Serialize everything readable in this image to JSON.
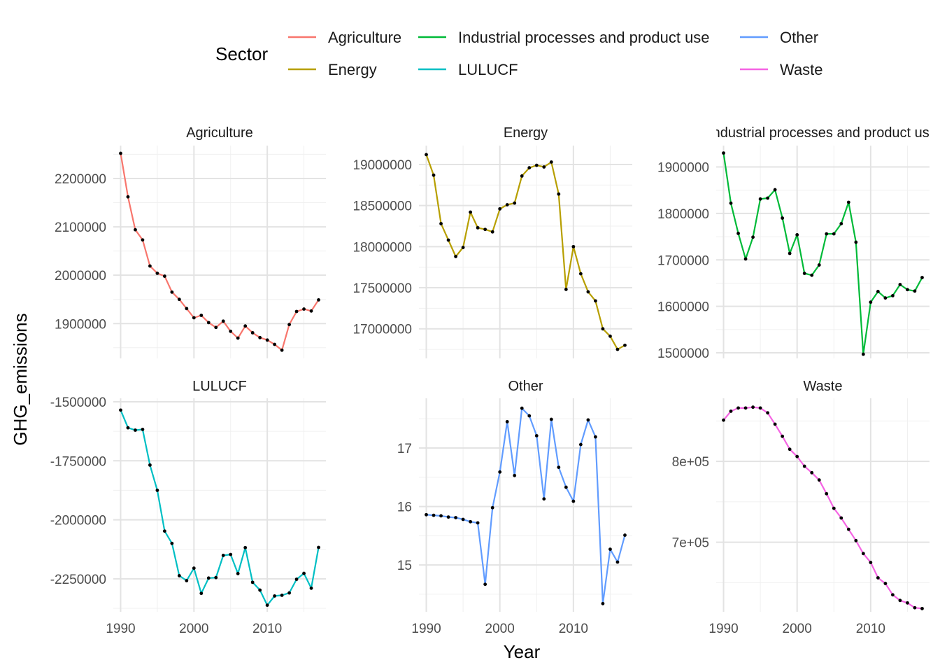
{
  "chart_data": {
    "type": "line",
    "facet_by": "Sector",
    "xlabel": "Year",
    "ylabel": "GHG_emissions",
    "legend": {
      "title": "Sector",
      "position": "top",
      "entries": [
        {
          "label": "Agriculture",
          "color": "#F8766D"
        },
        {
          "label": "Energy",
          "color": "#B79F00"
        },
        {
          "label": "Industrial processes and product use",
          "color": "#00BA38"
        },
        {
          "label": "LULUCF",
          "color": "#00BFC4"
        },
        {
          "label": "Other",
          "color": "#619CFF"
        },
        {
          "label": "Waste",
          "color": "#F564E3"
        }
      ]
    },
    "grid": true,
    "x_ticks": [
      1990,
      2000,
      2010
    ],
    "years": [
      1990,
      1991,
      1992,
      1993,
      1994,
      1995,
      1996,
      1997,
      1998,
      1999,
      2000,
      2001,
      2002,
      2003,
      2004,
      2005,
      2006,
      2007,
      2008,
      2009,
      2010,
      2011,
      2012,
      2013,
      2014,
      2015,
      2016,
      2017
    ],
    "xlim": [
      1989,
      2018
    ],
    "panels": [
      {
        "name": "Agriculture",
        "strip_label": "Agriculture",
        "color": "#F8766D",
        "ylim": [
          1828000,
          2268000
        ],
        "y_ticks": [
          1900000,
          2000000,
          2100000,
          2200000
        ],
        "y_tick_labels": [
          "1900000",
          "2000000",
          "2100000",
          "2200000"
        ],
        "y_minor": [
          1850000,
          1950000,
          2050000,
          2150000,
          2250000
        ],
        "values": [
          2252000,
          2162000,
          2094000,
          2073000,
          2019000,
          2004000,
          1998000,
          1965000,
          1950000,
          1931000,
          1912000,
          1917000,
          1902000,
          1892000,
          1905000,
          1884000,
          1870000,
          1895000,
          1881000,
          1871000,
          1866000,
          1857000,
          1845000,
          1898000,
          1925000,
          1930000,
          1926000,
          1949000
        ]
      },
      {
        "name": "Energy",
        "strip_label": "Energy",
        "color": "#B79F00",
        "ylim": [
          16640000,
          19230000
        ],
        "y_ticks": [
          17000000,
          17500000,
          18000000,
          18500000,
          19000000
        ],
        "y_tick_labels": [
          "17000000",
          "17500000",
          "18000000",
          "18500000",
          "19000000"
        ],
        "y_minor": [
          16750000,
          17250000,
          17750000,
          18250000,
          18750000
        ],
        "values": [
          19120000,
          18870000,
          18280000,
          18080000,
          17880000,
          17990000,
          18420000,
          18230000,
          18210000,
          18180000,
          18460000,
          18510000,
          18530000,
          18860000,
          18960000,
          18990000,
          18970000,
          19030000,
          18640000,
          17480000,
          18000000,
          17670000,
          17450000,
          17340000,
          17000000,
          16910000,
          16750000,
          16800000
        ]
      },
      {
        "name": "Industrial processes and product use",
        "strip_label": "Industrial processes and product use",
        "color": "#00BA38",
        "ylim": [
          1488000,
          1946000
        ],
        "y_ticks": [
          1500000,
          1600000,
          1700000,
          1800000,
          1900000
        ],
        "y_tick_labels": [
          "1500000",
          "1600000",
          "1700000",
          "1800000",
          "1900000"
        ],
        "y_minor": [
          1550000,
          1650000,
          1750000,
          1850000
        ],
        "values": [
          1930000,
          1822000,
          1757000,
          1702000,
          1749000,
          1831000,
          1833000,
          1851000,
          1790000,
          1714000,
          1754000,
          1671000,
          1667000,
          1689000,
          1756000,
          1756000,
          1778000,
          1824000,
          1738000,
          1497000,
          1609000,
          1632000,
          1618000,
          1623000,
          1647000,
          1636000,
          1633000,
          1662000
        ]
      },
      {
        "name": "LULUCF",
        "strip_label": "LULUCF",
        "color": "#00BFC4",
        "ylim": [
          -2390000,
          -1485000
        ],
        "y_ticks": [
          -2250000,
          -2000000,
          -1750000,
          -1500000
        ],
        "y_tick_labels": [
          "-2250000",
          "-2000000",
          "-1750000",
          "-1500000"
        ],
        "y_minor": [
          -2375000,
          -2125000,
          -1875000,
          -1625000
        ],
        "values": [
          -1535000,
          -1610000,
          -1620000,
          -1617000,
          -1768000,
          -1875000,
          -2048000,
          -2100000,
          -2237000,
          -2258000,
          -2205000,
          -2312000,
          -2247000,
          -2245000,
          -2151000,
          -2147000,
          -2228000,
          -2118000,
          -2265000,
          -2298000,
          -2362000,
          -2323000,
          -2320000,
          -2310000,
          -2252000,
          -2227000,
          -2290000,
          -2117000
        ]
      },
      {
        "name": "Other",
        "strip_label": "Other",
        "color": "#619CFF",
        "ylim": [
          14.2,
          17.85
        ],
        "y_ticks": [
          15,
          16,
          17
        ],
        "y_tick_labels": [
          "15",
          "16",
          "17"
        ],
        "y_minor": [
          14.5,
          15.5,
          16.5,
          17.5
        ],
        "values": [
          15.86,
          15.85,
          15.84,
          15.82,
          15.81,
          15.78,
          15.74,
          15.72,
          14.67,
          15.98,
          16.59,
          17.45,
          16.53,
          17.68,
          17.55,
          17.21,
          16.13,
          17.49,
          16.67,
          16.33,
          16.09,
          17.06,
          17.48,
          17.19,
          14.34,
          15.27,
          15.05,
          15.51
        ]
      },
      {
        "name": "Waste",
        "strip_label": "Waste",
        "color": "#F564E3",
        "ylim": [
          614000,
          878000
        ],
        "y_ticks": [
          700000,
          800000
        ],
        "y_tick_labels": [
          "7e+05",
          "8e+05"
        ],
        "y_minor": [
          650000,
          750000,
          850000
        ],
        "values": [
          851000,
          862000,
          866000,
          866000,
          867000,
          866000,
          860000,
          846000,
          831000,
          815000,
          806000,
          794000,
          786000,
          777000,
          760000,
          742000,
          730000,
          716000,
          702000,
          686000,
          675000,
          656000,
          649000,
          635000,
          628000,
          625000,
          619000,
          618000
        ]
      }
    ]
  }
}
